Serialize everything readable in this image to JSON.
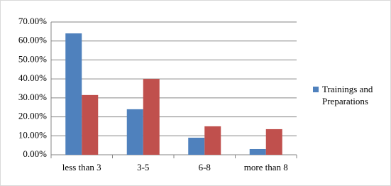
{
  "chart_data": {
    "type": "bar",
    "categories": [
      "less than 3",
      "3-5",
      "6-8",
      "more than 8"
    ],
    "series": [
      {
        "name": "Trainings and Preparations",
        "color": "#4f81bd",
        "values": [
          64,
          24,
          9,
          3
        ]
      },
      {
        "color": "#c0504d",
        "values": [
          31.5,
          40,
          15,
          13.5
        ]
      }
    ],
    "ylim": [
      0,
      70
    ],
    "yticks": [
      {
        "value": 0,
        "label": "0.00%"
      },
      {
        "value": 10,
        "label": "10.00%"
      },
      {
        "value": 20,
        "label": "20.00%"
      },
      {
        "value": 30,
        "label": "30.00%"
      },
      {
        "value": 40,
        "label": "40.00%"
      },
      {
        "value": 50,
        "label": "50.00%"
      },
      {
        "value": 60,
        "label": "60.00%"
      },
      {
        "value": 70,
        "label": "70.00%"
      }
    ],
    "grid": true,
    "legend": "right"
  }
}
